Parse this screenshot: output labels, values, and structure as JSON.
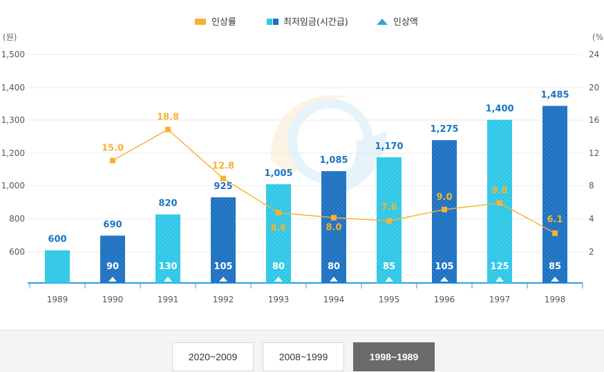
{
  "chart_data": {
    "type": "bar",
    "legend": [
      {
        "name": "인상률",
        "marker": "square",
        "color": "#f5b331"
      },
      {
        "name": "최저임금(시간급)",
        "marker": "double-square",
        "color": "#1c6fbf"
      },
      {
        "name": "인상액",
        "marker": "triangle",
        "color": "#3a9fd8"
      }
    ],
    "y_left_label": "(원)",
    "y_right_label": "(%)",
    "y_left_ticks": [
      "600",
      "800",
      "1,000",
      "1,200",
      "1,400",
      "1,500"
    ],
    "y_right_ticks": [
      "2",
      "4",
      "8",
      "12",
      "16",
      "20",
      "24"
    ],
    "categories": [
      "1989",
      "1990",
      "1991",
      "1992",
      "1993",
      "1994",
      "1995",
      "1996",
      "1997",
      "1998"
    ],
    "series": [
      {
        "name": "최저임금(시간급)",
        "kind": "bar",
        "values": [
          600,
          690,
          820,
          925,
          1005,
          1085,
          1170,
          1275,
          1400,
          1485
        ],
        "labels": [
          "600",
          "690",
          "820",
          "925",
          "1,005",
          "1,085",
          "1,170",
          "1,275",
          "1,400",
          "1,485"
        ]
      },
      {
        "name": "인상액",
        "kind": "bar-inner-label",
        "values": [
          null,
          90,
          130,
          105,
          80,
          80,
          85,
          105,
          125,
          85
        ]
      },
      {
        "name": "인상률",
        "kind": "line",
        "values": [
          null,
          15.0,
          18.8,
          12.8,
          8.6,
          8.0,
          7.6,
          9.0,
          9.8,
          6.1
        ],
        "labels": [
          "",
          "15.0",
          "18.8",
          "12.8",
          "8.6",
          "8.0",
          "7.6",
          "9.0",
          "9.8",
          "6.1"
        ]
      }
    ],
    "colors": {
      "bar_dark": "#1c6fbf",
      "bar_light": "#2ec6e6",
      "line": "#f5b331",
      "value_label": "#1b74c1",
      "axis": "#2e9ed8"
    }
  },
  "period_buttons": [
    {
      "label": "2020~2009",
      "active": false
    },
    {
      "label": "2008~1999",
      "active": false
    },
    {
      "label": "1998~1989",
      "active": true
    }
  ]
}
